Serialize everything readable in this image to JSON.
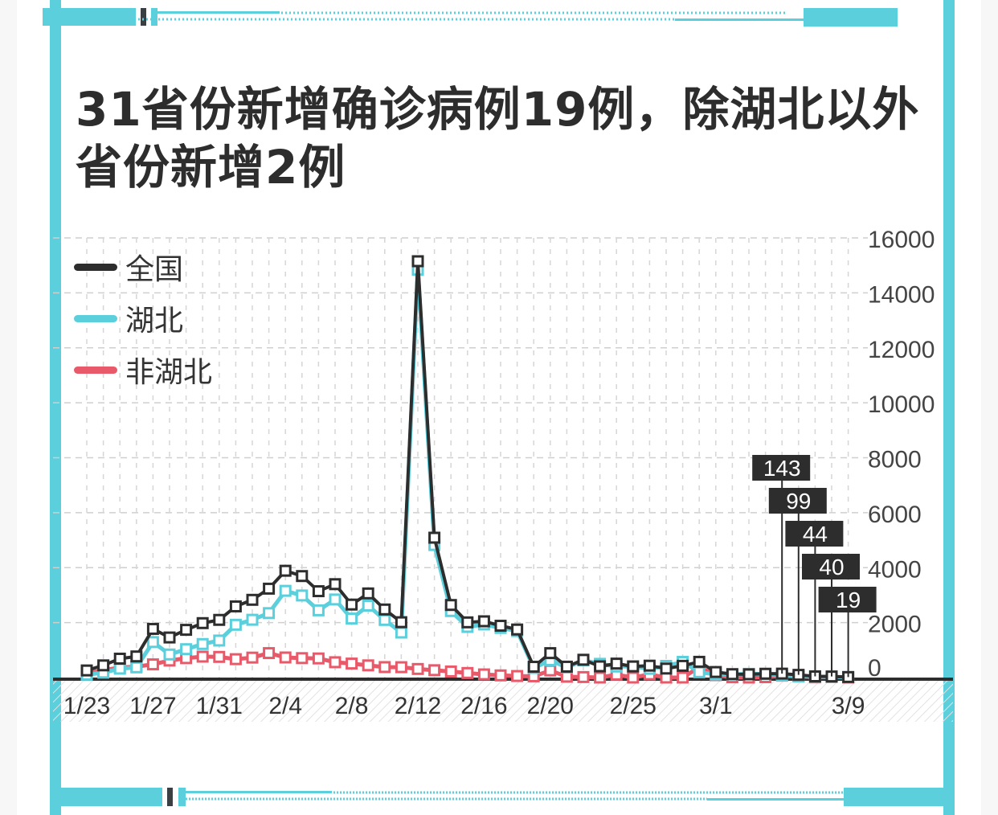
{
  "title": {
    "line1": "31省份新增确诊病例19例，除湖北以外",
    "line2": "省份新增2例"
  },
  "colors": {
    "accent": "#5bcfdb",
    "national": "#2d2d2d",
    "hubei": "#5bcfdb",
    "non_hubei": "#e85a6a"
  },
  "legend": [
    {
      "label": "全国",
      "color": "#2d2d2d"
    },
    {
      "label": "湖北",
      "color": "#5bcfdb"
    },
    {
      "label": "非湖北",
      "color": "#e85a6a"
    }
  ],
  "callouts": [
    "143",
    "99",
    "44",
    "40",
    "19"
  ],
  "chart_data": {
    "type": "line",
    "title": "31省份新增确诊病例19例，除湖北以外省份新增2例",
    "xlabel": "",
    "ylabel": "",
    "ylim": [
      0,
      16000
    ],
    "y_ticks": [
      0,
      2000,
      4000,
      6000,
      8000,
      10000,
      12000,
      14000,
      16000
    ],
    "x_tick_labels": [
      "1/23",
      "1/27",
      "1/31",
      "2/4",
      "2/8",
      "2/12",
      "2/16",
      "2/20",
      "2/25",
      "3/1",
      "3/9"
    ],
    "x_tick_index": [
      0,
      4,
      8,
      12,
      16,
      20,
      24,
      28,
      33,
      38,
      46
    ],
    "grid": true,
    "legend_position": "top-left",
    "y_axis_position": "right",
    "x": [
      "1/23",
      "1/24",
      "1/25",
      "1/26",
      "1/27",
      "1/28",
      "1/29",
      "1/30",
      "1/31",
      "2/1",
      "2/2",
      "2/3",
      "2/4",
      "2/5",
      "2/6",
      "2/7",
      "2/8",
      "2/9",
      "2/10",
      "2/11",
      "2/12",
      "2/13",
      "2/14",
      "2/15",
      "2/16",
      "2/17",
      "2/18",
      "2/19",
      "2/20",
      "2/21",
      "2/22",
      "2/23",
      "2/24",
      "2/25",
      "2/26",
      "2/27",
      "2/28",
      "2/29",
      "3/1",
      "3/2",
      "3/3",
      "3/4",
      "3/5",
      "3/6",
      "3/7",
      "3/8",
      "3/9"
    ],
    "series": [
      {
        "name": "全国",
        "values": [
          259,
          444,
          688,
          769,
          1771,
          1459,
          1737,
          1981,
          2099,
          2590,
          2829,
          3235,
          3887,
          3694,
          3143,
          3399,
          2656,
          3062,
          2478,
          2015,
          15152,
          5090,
          2641,
          2009,
          2048,
          1886,
          1749,
          394,
          889,
          397,
          648,
          409,
          508,
          406,
          433,
          327,
          427,
          573,
          202,
          125,
          119,
          139,
          143,
          99,
          44,
          40,
          19
        ]
      },
      {
        "name": "湖北",
        "values": [
          105,
          180,
          323,
          371,
          1291,
          840,
          1032,
          1220,
          1347,
          1921,
          2103,
          2345,
          3156,
          2987,
          2447,
          2841,
          2147,
          2618,
          2097,
          1638,
          14840,
          4823,
          2420,
          1843,
          1933,
          1807,
          1693,
          349,
          631,
          366,
          630,
          499,
          401,
          409,
          318,
          423,
          570,
          196,
          114,
          115,
          134,
          126,
          74,
          41,
          36,
          17,
          17
        ]
      },
      {
        "name": "非湖北",
        "values": [
          154,
          264,
          365,
          398,
          480,
          619,
          705,
          761,
          752,
          669,
          726,
          890,
          731,
          707,
          696,
          558,
          509,
          444,
          381,
          377,
          312,
          267,
          221,
          166,
          115,
          79,
          56,
          45,
          258,
          31,
          18,
          -90,
          107,
          -3,
          115,
          -96,
          -143,
          377,
          88,
          10,
          -15,
          13,
          69,
          58,
          8,
          23,
          2
        ]
      }
    ],
    "annotations": [
      {
        "x": "3/5",
        "label": "143"
      },
      {
        "x": "3/6",
        "label": "99"
      },
      {
        "x": "3/7",
        "label": "44"
      },
      {
        "x": "3/8",
        "label": "40"
      },
      {
        "x": "3/9",
        "label": "19"
      }
    ]
  }
}
